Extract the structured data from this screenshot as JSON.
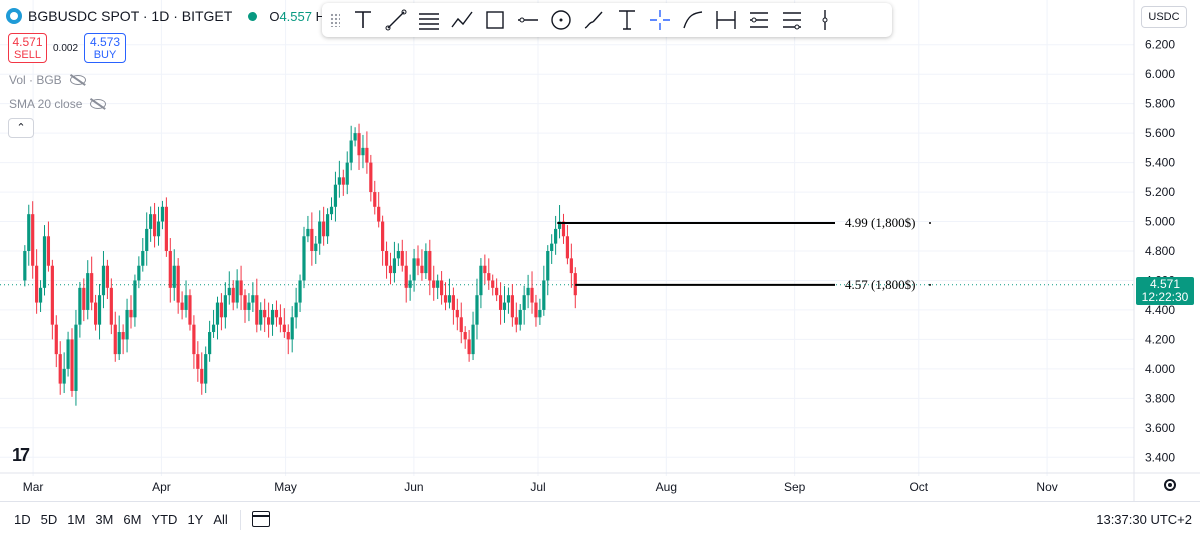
{
  "header": {
    "symbol": "BGBUSDC SPOT · 1D · BITGET",
    "ohlc_prefix": "O",
    "ohlc_value": "4.557",
    "ohlc_next": "H"
  },
  "trade": {
    "sell_price": "4.571",
    "sell_label": "SELL",
    "spread": "0.002",
    "buy_price": "4.573",
    "buy_label": "BUY"
  },
  "indicators": [
    {
      "label": "Vol · BGB"
    },
    {
      "label": "SMA 20 close"
    }
  ],
  "toolbar": {
    "tools": [
      "text-tool-icon",
      "trend-line-icon",
      "fib-retracement-icon",
      "path-icon",
      "rectangle-icon",
      "horizontal-ray-icon",
      "circle-icon",
      "brush-icon",
      "anchored-text-icon",
      "crosshair-icon",
      "curve-icon",
      "date-range-icon",
      "long-position-icon",
      "short-position-icon",
      "vertical-line-icon"
    ]
  },
  "currency_button": "USDC",
  "last_price": {
    "value": "4.571",
    "countdown": "12:22:30",
    "color": "#089981"
  },
  "bottom": {
    "ranges": [
      "1D",
      "5D",
      "1M",
      "3M",
      "6M",
      "YTD",
      "1Y",
      "All"
    ],
    "clock": "13:37:30 UTC+2"
  },
  "colors": {
    "up": "#089981",
    "down": "#f23645",
    "grid": "#f0f3fa",
    "text": "#131722"
  },
  "chart_data": {
    "type": "candlestick",
    "ylim": [
      3.3,
      6.3
    ],
    "yticks": [
      "6.200",
      "6.000",
      "5.800",
      "5.600",
      "5.400",
      "5.200",
      "5.000",
      "4.800",
      "4.600",
      "4.400",
      "4.200",
      "4.000",
      "3.800",
      "3.600",
      "3.400"
    ],
    "xticks": [
      {
        "label": "Mar",
        "day": 0
      },
      {
        "label": "Apr",
        "day": 31
      },
      {
        "label": "May",
        "day": 61
      },
      {
        "label": "Jun",
        "day": 92
      },
      {
        "label": "Jul",
        "day": 122
      },
      {
        "label": "Aug",
        "day": 153
      },
      {
        "label": "Sep",
        "day": 184
      },
      {
        "label": "Oct",
        "day": 214
      },
      {
        "label": "Nov",
        "day": 245
      }
    ],
    "x_range_days": [
      -8,
      266
    ],
    "current_price": 4.571,
    "horizontal_rays": [
      {
        "price": 4.99,
        "label": "4.99 (1,800$)"
      },
      {
        "price": 4.57,
        "label": "4.57 (1,800$)"
      }
    ],
    "closes": [
      4.8,
      5.05,
      4.7,
      4.45,
      4.55,
      4.9,
      4.7,
      4.3,
      4.1,
      3.9,
      4.0,
      4.2,
      3.85,
      4.3,
      4.55,
      4.4,
      4.65,
      4.45,
      4.3,
      4.5,
      4.7,
      4.55,
      4.3,
      4.1,
      4.25,
      4.2,
      4.4,
      4.35,
      4.6,
      4.7,
      4.8,
      4.95,
      5.05,
      4.9,
      5.0,
      5.1,
      4.8,
      4.55,
      4.7,
      4.45,
      4.4,
      4.5,
      4.3,
      4.1,
      4.0,
      3.9,
      4.1,
      4.25,
      4.3,
      4.45,
      4.35,
      4.5,
      4.55,
      4.45,
      4.6,
      4.5,
      4.4,
      4.45,
      4.5,
      4.3,
      4.4,
      4.35,
      4.3,
      4.4,
      4.35,
      4.3,
      4.25,
      4.2,
      4.35,
      4.45,
      4.6,
      4.9,
      4.95,
      4.8,
      4.85,
      5.0,
      4.9,
      5.05,
      5.1,
      5.25,
      5.3,
      5.25,
      5.4,
      5.55,
      5.6,
      5.45,
      5.5,
      5.4,
      5.2,
      5.1,
      5.0,
      4.8,
      4.7,
      4.65,
      4.75,
      4.8,
      4.7,
      4.55,
      4.6,
      4.75,
      4.7,
      4.65,
      4.8,
      4.6,
      4.55,
      4.6,
      4.5,
      4.45,
      4.5,
      4.4,
      4.35,
      4.25,
      4.2,
      4.1,
      4.3,
      4.5,
      4.7,
      4.65,
      4.6,
      4.55,
      4.5,
      4.4,
      4.45,
      4.5,
      4.35,
      4.3,
      4.4,
      4.5,
      4.55,
      4.45,
      4.35,
      4.4,
      4.6,
      4.8,
      4.85,
      4.95,
      5.0,
      4.9,
      4.75,
      4.65,
      4.5
    ]
  }
}
